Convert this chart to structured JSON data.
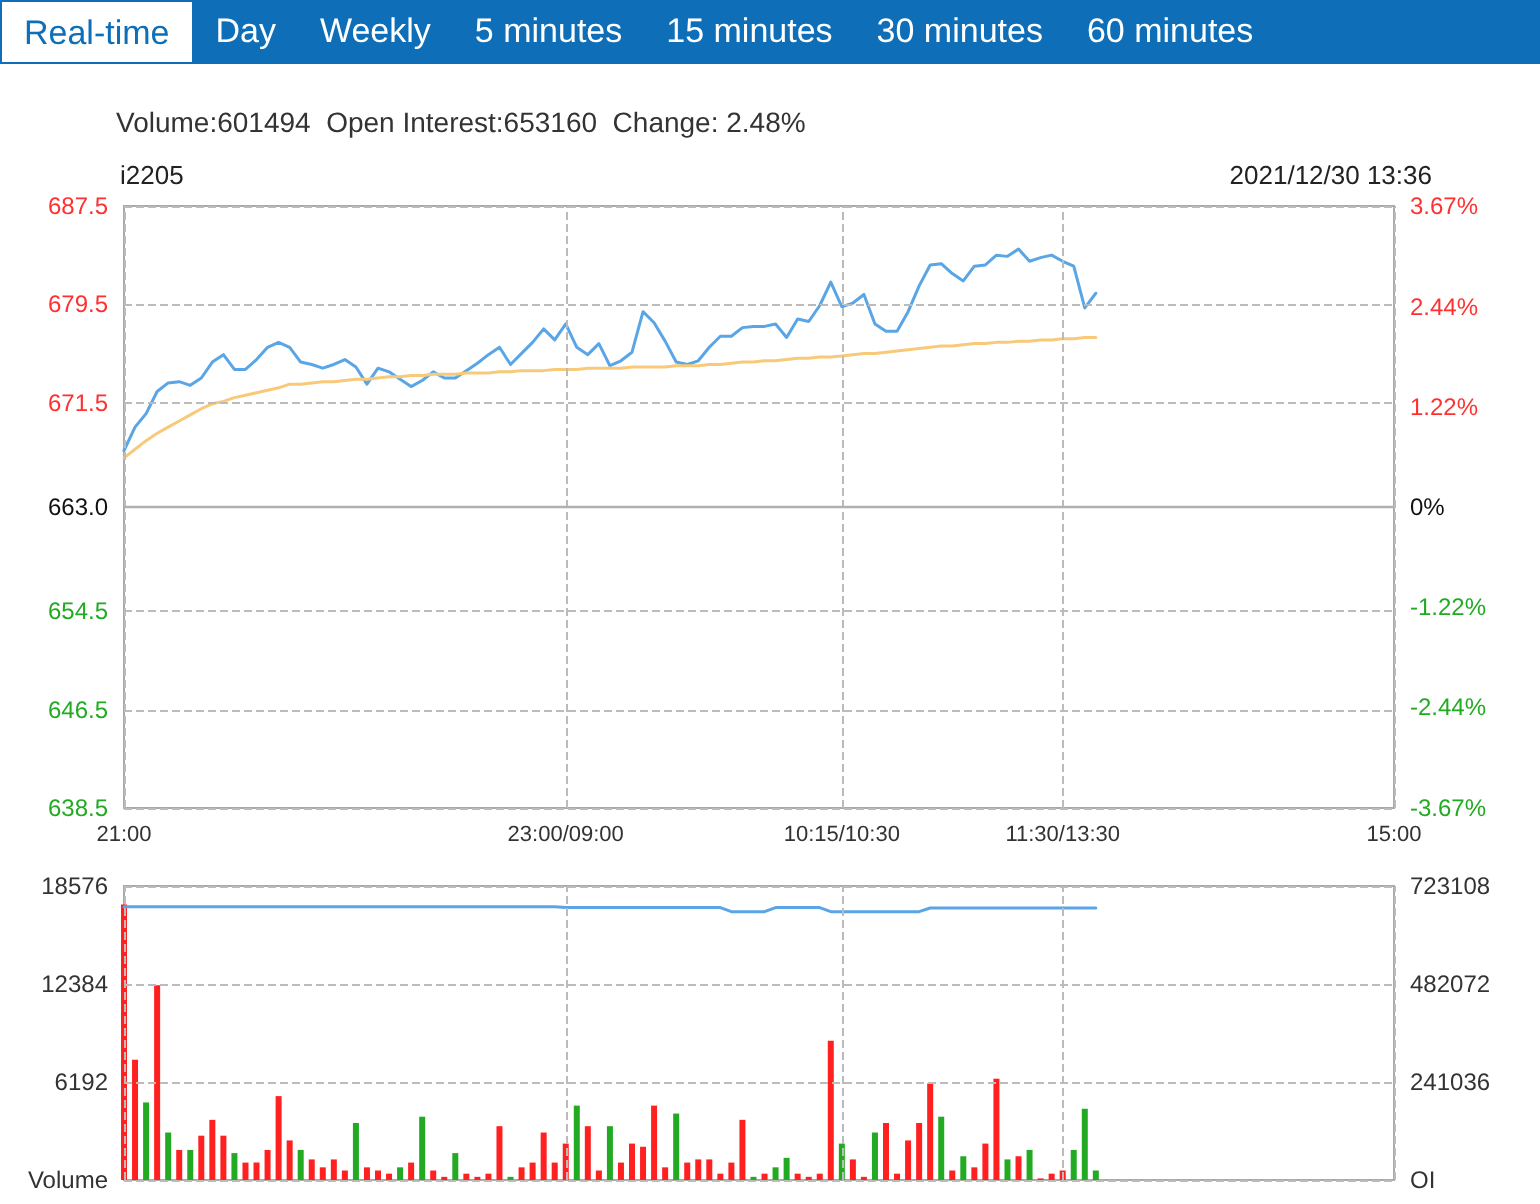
{
  "chart_data": [
    {
      "type": "line",
      "title": "i2205",
      "subtitle": "Volume:601494  Open Interest:653160  Change: 2.48%",
      "annotations": [
        "Real-time",
        "Day",
        "Weekly",
        "5 minutes",
        "15 minutes",
        "30 minutes",
        "60 minutes",
        "2021/12/30 13:36"
      ],
      "categories": [
        "21:00",
        null,
        null,
        null,
        null,
        null,
        null,
        null,
        null,
        null,
        null,
        null,
        null,
        null,
        null,
        null,
        null,
        null,
        null,
        null,
        null,
        null,
        null,
        null,
        null,
        null,
        null,
        null,
        null,
        null,
        null,
        null,
        null,
        null,
        null,
        null,
        null,
        null,
        null,
        null,
        "23:00/09:00",
        null,
        null,
        null,
        null,
        null,
        null,
        null,
        null,
        null,
        null,
        null,
        null,
        null,
        null,
        null,
        null,
        null,
        null,
        null,
        null,
        null,
        null,
        null,
        null,
        "10:15/10:30",
        null,
        null,
        null,
        null,
        null,
        null,
        null,
        null,
        null,
        null,
        null,
        null,
        null,
        null,
        null,
        null,
        null,
        null,
        null,
        "11:30/13:30",
        null,
        null,
        null,
        null,
        null,
        null,
        null,
        null,
        null,
        null,
        null,
        null,
        null,
        null,
        null,
        null,
        null,
        null,
        null,
        null,
        null,
        null,
        null,
        null,
        null,
        null,
        null,
        null,
        null,
        "15:00"
      ],
      "ylim": [
        638.5,
        687.5
      ],
      "yticks": [
        638.5,
        646.5,
        654.5,
        {
          "value": 663,
          "label": "663.0"
        },
        671.5,
        679.5,
        687.5
      ],
      "y2lim": [
        -3.67,
        3.67
      ],
      "y2ticks": [
        {
          "value": -3.67,
          "label": "-3.67%"
        },
        {
          "value": -2.44,
          "label": "-2.44%"
        },
        {
          "value": -1.22,
          "label": "-1.22%"
        },
        {
          "value": 0,
          "label": "0%"
        },
        {
          "value": 1.22,
          "label": "1.22%"
        },
        {
          "value": 2.44,
          "label": "2.44%"
        },
        {
          "value": 3.67,
          "label": "3.67%"
        }
      ],
      "grid": true,
      "line_style": "solid",
      "ref_lines": [
        {
          "axis": "y",
          "value": 663,
          "color": "#b0b0b0"
        }
      ],
      "series": [
        {
          "color": "#5aa5e6",
          "values": [
            667.6,
            669.5,
            670.6,
            672.4,
            673.1,
            673.2,
            672.9,
            673.5,
            674.8,
            675.4,
            674.2,
            674.2,
            675.0,
            676.0,
            676.4,
            676.0,
            674.8,
            674.6,
            674.3,
            674.6,
            675.0,
            674.4,
            673.0,
            674.3,
            674.0,
            673.4,
            672.8,
            673.3,
            674.0,
            673.5,
            673.5,
            674.1,
            674.7,
            675.4,
            676.0,
            674.6,
            675.5,
            676.4,
            677.5,
            676.6,
            677.9,
            676.0,
            675.4,
            676.3,
            674.5,
            674.9,
            675.6,
            678.9,
            678.0,
            676.5,
            674.8,
            674.6,
            674.9,
            676.0,
            676.9,
            676.9,
            677.6,
            677.7,
            677.7,
            677.9,
            676.8,
            678.3,
            678.1,
            679.4,
            681.3,
            679.3,
            679.6,
            680.3,
            677.9,
            677.3,
            677.3,
            678.9,
            681.0,
            682.7,
            682.8,
            682.0,
            681.4,
            682.6,
            682.7,
            683.5,
            683.4,
            684.0,
            683.0,
            683.3,
            683.5,
            683.0,
            682.6,
            679.2,
            680.4,
            null,
            null,
            null,
            null,
            null,
            null,
            null,
            null,
            null,
            null,
            null,
            null,
            null,
            null,
            null,
            null,
            null,
            null,
            null,
            null,
            null,
            null,
            null,
            null,
            null,
            null,
            null
          ]
        },
        {
          "color": "#f9c97a",
          "values": [
            667.0,
            667.7,
            668.4,
            669.0,
            669.5,
            670.0,
            670.5,
            671.0,
            671.4,
            671.6,
            671.9,
            672.1,
            672.3,
            672.5,
            672.7,
            673.0,
            673.0,
            673.1,
            673.2,
            673.2,
            673.3,
            673.4,
            673.4,
            673.5,
            673.6,
            673.6,
            673.7,
            673.7,
            673.8,
            673.8,
            673.8,
            673.9,
            673.9,
            673.9,
            674.0,
            674.0,
            674.1,
            674.1,
            674.1,
            674.2,
            674.2,
            674.2,
            674.3,
            674.3,
            674.3,
            674.3,
            674.4,
            674.4,
            674.4,
            674.4,
            674.5,
            674.5,
            674.5,
            674.6,
            674.6,
            674.7,
            674.8,
            674.8,
            674.9,
            674.9,
            675.0,
            675.1,
            675.1,
            675.2,
            675.2,
            675.3,
            675.4,
            675.5,
            675.5,
            675.6,
            675.7,
            675.8,
            675.9,
            676.0,
            676.1,
            676.1,
            676.2,
            676.3,
            676.3,
            676.4,
            676.4,
            676.5,
            676.5,
            676.6,
            676.6,
            676.7,
            676.7,
            676.8,
            676.8,
            null,
            null,
            null,
            null,
            null,
            null,
            null,
            null,
            null,
            null,
            null,
            null,
            null,
            null,
            null,
            null,
            null,
            null,
            null,
            null,
            null,
            null,
            null,
            null,
            null,
            null,
            null
          ]
        }
      ]
    },
    {
      "type": "bar",
      "tick_labels": "y",
      "grid": true,
      "categories": [
        null,
        null,
        null,
        null,
        null,
        null,
        null,
        null,
        null,
        null,
        null,
        null,
        null,
        null,
        null,
        null,
        null,
        null,
        null,
        null,
        null,
        null,
        null,
        null,
        null,
        null,
        null,
        null,
        null,
        null,
        null,
        null,
        null,
        null,
        null,
        null,
        null,
        null,
        null,
        null,
        null,
        null,
        null,
        null,
        null,
        null,
        null,
        null,
        null,
        null,
        null,
        null,
        null,
        null,
        null,
        null,
        null,
        null,
        null,
        null,
        null,
        null,
        null,
        null,
        null,
        null,
        null,
        null,
        null,
        null,
        null,
        null,
        null,
        null,
        null,
        null,
        null,
        null,
        null,
        null,
        null,
        null,
        null,
        null,
        null,
        null,
        null,
        null,
        null,
        null,
        null,
        null,
        null,
        null,
        null,
        null,
        null,
        null,
        null,
        null,
        null,
        null,
        null,
        null,
        null,
        null,
        null,
        null,
        null,
        null,
        null,
        null,
        null,
        null,
        null,
        null
      ],
      "ylim": [
        0,
        18576
      ],
      "yticks": [
        {
          "value": 0,
          "label": "Volume"
        },
        6192,
        12384,
        18576
      ],
      "y2lim": [
        0,
        723108
      ],
      "y2ticks": [
        {
          "value": 0,
          "label": "OI"
        },
        241036,
        482072,
        723108
      ],
      "series": [
        {
          "type": "bar",
          "values": [
            17400,
            7600,
            4900,
            12300,
            3000,
            1900,
            1900,
            2800,
            3800,
            2800,
            1700,
            1100,
            1100,
            1900,
            5300,
            2500,
            1900,
            1300,
            800,
            1300,
            600,
            3600,
            800,
            600,
            400,
            800,
            1100,
            4000,
            600,
            200,
            1700,
            400,
            200,
            400,
            3400,
            200,
            800,
            1100,
            3000,
            1100,
            2300,
            4700,
            3400,
            600,
            3400,
            1100,
            2300,
            2100,
            4700,
            800,
            4200,
            1100,
            1300,
            1300,
            400,
            1100,
            3800,
            200,
            400,
            800,
            1400,
            400,
            200,
            400,
            8800,
            2300,
            1300,
            200,
            3000,
            3600,
            400,
            2500,
            3600,
            6100,
            4000,
            600,
            1500,
            800,
            2300,
            6400,
            1300,
            1500,
            1900,
            100,
            400,
            600,
            1900,
            4500,
            600,
            null,
            null,
            null,
            null,
            null,
            null,
            null,
            null,
            null,
            null,
            null,
            null,
            null,
            null,
            null,
            null,
            null,
            null,
            null,
            null,
            null,
            null,
            null,
            null,
            null,
            null,
            null
          ],
          "colors": [
            "#ff2020",
            "#ff2020",
            "#22aa22",
            "#ff2020",
            "#22aa22",
            "#ff2020",
            "#22aa22",
            "#ff2020",
            "#ff2020",
            "#ff2020",
            "#22aa22",
            "#ff2020",
            "#ff2020",
            "#ff2020",
            "#ff2020",
            "#ff2020",
            "#22aa22",
            "#ff2020",
            "#ff2020",
            "#ff2020",
            "#ff2020",
            "#22aa22",
            "#ff2020",
            "#ff2020",
            "#ff2020",
            "#22aa22",
            "#ff2020",
            "#22aa22",
            "#ff2020",
            "#ff2020",
            "#22aa22",
            "#ff2020",
            "#ff2020",
            "#ff2020",
            "#ff2020",
            "#22aa22",
            "#ff2020",
            "#ff2020",
            "#ff2020",
            "#ff2020",
            "#ff2020",
            "#22aa22",
            "#ff2020",
            "#ff2020",
            "#22aa22",
            "#ff2020",
            "#ff2020",
            "#ff2020",
            "#ff2020",
            "#ff2020",
            "#22aa22",
            "#ff2020",
            "#ff2020",
            "#ff2020",
            "#ff2020",
            "#ff2020",
            "#ff2020",
            "#22aa22",
            "#ff2020",
            "#22aa22",
            "#22aa22",
            "#ff2020",
            "#ff2020",
            "#ff2020",
            "#ff2020",
            "#22aa22",
            "#ff2020",
            "#ff2020",
            "#22aa22",
            "#ff2020",
            "#ff2020",
            "#ff2020",
            "#ff2020",
            "#ff2020",
            "#22aa22",
            "#ff2020",
            "#22aa22",
            "#ff2020",
            "#ff2020",
            "#ff2020",
            "#22aa22",
            "#ff2020",
            "#22aa22",
            "#ff2020",
            "#ff2020",
            "#ff2020",
            "#22aa22",
            "#22aa22",
            "#22aa22",
            null,
            null,
            null,
            null,
            null,
            null,
            null,
            null,
            null,
            null,
            null,
            null,
            null,
            null,
            null,
            null,
            null,
            null,
            null,
            null,
            null,
            null,
            null,
            null,
            null,
            null,
            null
          ]
        },
        {
          "type": "line",
          "axis": "y2",
          "color": "#5aa5e6",
          "values": [
            672000,
            672000,
            672000,
            672000,
            672000,
            672000,
            672000,
            672000,
            672000,
            672000,
            672000,
            672000,
            672000,
            672000,
            672000,
            672000,
            672000,
            672000,
            672000,
            672000,
            672000,
            672000,
            672000,
            672000,
            672000,
            672000,
            672000,
            672000,
            672000,
            672000,
            672000,
            672000,
            672000,
            672000,
            672000,
            672000,
            672000,
            672000,
            672000,
            672000,
            670000,
            670000,
            670000,
            670000,
            670000,
            670000,
            670000,
            670000,
            670000,
            670000,
            670000,
            670000,
            670000,
            670000,
            670000,
            660000,
            660000,
            660000,
            660000,
            670000,
            670000,
            670000,
            670000,
            670000,
            660000,
            660000,
            660000,
            660000,
            660000,
            660000,
            660000,
            660000,
            660000,
            669000,
            669000,
            669000,
            669000,
            669000,
            669000,
            669000,
            669000,
            669000,
            669000,
            669000,
            669000,
            669000,
            669000,
            669000,
            669000,
            null,
            null,
            null,
            null,
            null,
            null,
            null,
            null,
            null,
            null,
            null,
            null,
            null,
            null,
            null,
            null,
            null,
            null,
            null,
            null,
            null,
            null,
            null,
            null,
            null,
            null,
            null
          ]
        }
      ]
    }
  ]
}
